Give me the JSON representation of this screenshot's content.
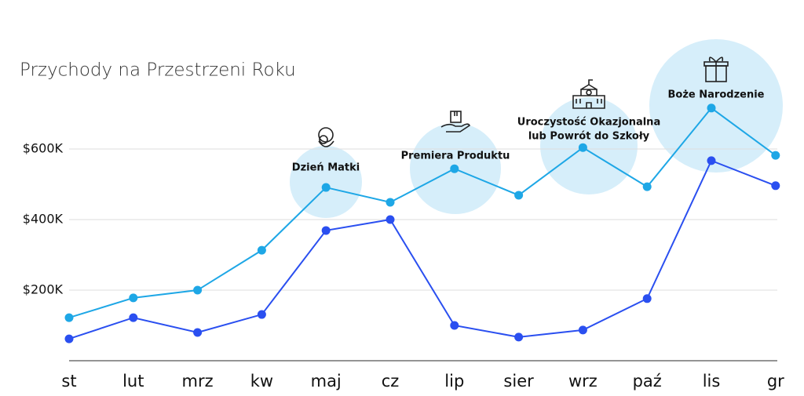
{
  "chart_data": {
    "type": "line",
    "title": "Przychody na Przestrzeni Roku",
    "categories": [
      "st",
      "lut",
      "mrz",
      "kw",
      "maj",
      "cz",
      "lip",
      "sier",
      "wrz",
      "paź",
      "lis",
      "gr"
    ],
    "series": [
      {
        "color": "#1ea7e6",
        "values": [
          122000,
          178000,
          200000,
          313000,
          491000,
          449000,
          544000,
          469000,
          604000,
          493000,
          716000,
          582000
        ]
      },
      {
        "color": "#2a4ff0",
        "values": [
          62000,
          122000,
          80000,
          131000,
          369000,
          400000,
          100000,
          67000,
          87000,
          176000,
          567000,
          496000
        ]
      }
    ],
    "ylim": [
      0,
      800000
    ],
    "yticks": [
      {
        "value": 200000,
        "label": "$200K"
      },
      {
        "value": 400000,
        "label": "$400K"
      },
      {
        "value": 600000,
        "label": "$600K"
      }
    ],
    "grid": true,
    "annotations": [
      {
        "category": "maj",
        "text": [
          "Dzień Matki"
        ]
      },
      {
        "category": "lip",
        "text": [
          "Premiera Produktu"
        ]
      },
      {
        "category": "wrz",
        "text": [
          "Uroczystość Okazjonalna",
          "lub Powrót do Szkoły"
        ]
      },
      {
        "category": "lis",
        "text": [
          "Boże Narodzenie"
        ]
      }
    ]
  }
}
